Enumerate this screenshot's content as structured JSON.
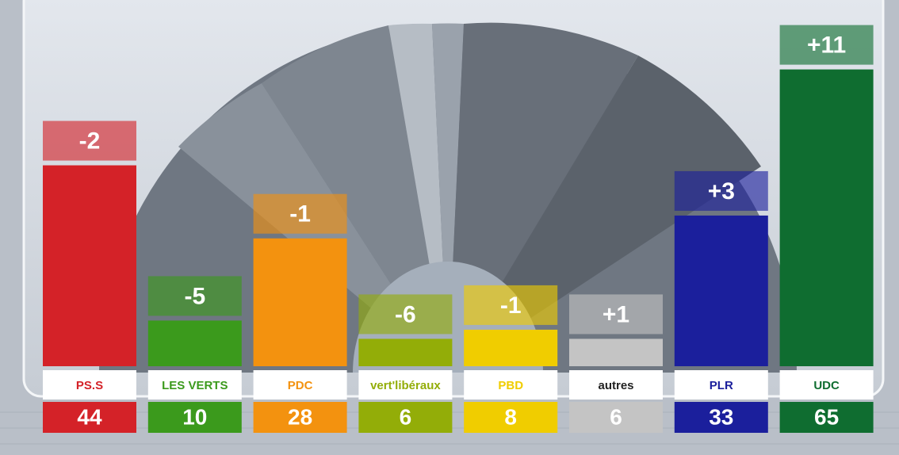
{
  "chart_data": {
    "type": "bar",
    "categories": [
      "PS.S",
      "LES VERTS",
      "PDC",
      "vert'libéraux",
      "PBD",
      "autres",
      "PLR",
      "UDC"
    ],
    "values": [
      44,
      10,
      28,
      6,
      8,
      6,
      33,
      65
    ],
    "changes": [
      -2,
      -5,
      -1,
      -6,
      -1,
      1,
      3,
      11
    ],
    "change_labels": [
      "-2",
      "-5",
      "-1",
      "-6",
      "-1",
      "+1",
      "+3",
      "+11"
    ],
    "colors": [
      "#d42228",
      "#3b9a1c",
      "#f3920f",
      "#93ad08",
      "#f0cd00",
      "#c4c4c4",
      "#1b1f9c",
      "#0f6d30"
    ]
  }
}
